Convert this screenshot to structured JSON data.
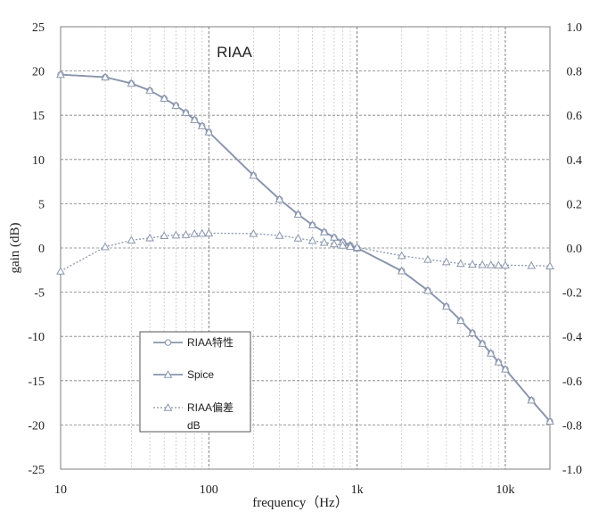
{
  "chart_data": {
    "type": "line",
    "title": "RIAA",
    "xlabel": "frequency（Hz）",
    "ylabel": "gain (dB)",
    "x_scale": "log",
    "xlim": [
      10,
      20000
    ],
    "ylim": [
      -25,
      25
    ],
    "y2lim": [
      -1.0,
      1.0
    ],
    "grid": true,
    "legend_position": "bottom-left",
    "x_ticks": [
      "10",
      "100",
      "1k",
      "10k"
    ],
    "y_ticks": [
      "25",
      "20",
      "15",
      "10",
      "5",
      "0",
      "-5",
      "-10",
      "-15",
      "-20",
      "-25"
    ],
    "y2_ticks": [
      "1.0",
      "0.8",
      "0.6",
      "0.4",
      "0.2",
      "0.0",
      "-0.2",
      "-0.4",
      "-0.6",
      "-0.8",
      "-1.0"
    ],
    "colors": {
      "series": "#8a96ad",
      "grid_major": "#7f7f7f",
      "grid_minor": "#c8c8c8"
    },
    "series": [
      {
        "name": "RIAA特性",
        "axis": "left",
        "style": "solid",
        "marker": "circle",
        "x": [
          10,
          20,
          30,
          40,
          50,
          60,
          70,
          80,
          90,
          100,
          200,
          300,
          400,
          500,
          600,
          700,
          800,
          900,
          1000,
          2000,
          3000,
          4000,
          5000,
          6000,
          7000,
          8000,
          9000,
          10000,
          15000,
          20000
        ],
        "values": [
          19.6,
          19.3,
          18.6,
          17.8,
          16.9,
          16.1,
          15.3,
          14.5,
          13.8,
          13.1,
          8.2,
          5.5,
          3.8,
          2.6,
          1.8,
          1.2,
          0.7,
          0.3,
          0.0,
          -2.6,
          -4.8,
          -6.6,
          -8.2,
          -9.6,
          -10.8,
          -11.9,
          -12.9,
          -13.7,
          -17.2,
          -19.6
        ]
      },
      {
        "name": "Spice",
        "axis": "left",
        "style": "solid",
        "marker": "triangle",
        "x": [
          10,
          20,
          30,
          40,
          50,
          60,
          70,
          80,
          90,
          100,
          200,
          300,
          400,
          500,
          600,
          700,
          800,
          900,
          1000,
          2000,
          3000,
          4000,
          5000,
          6000,
          7000,
          8000,
          9000,
          10000,
          15000,
          20000
        ],
        "values": [
          19.6,
          19.3,
          18.6,
          17.8,
          16.9,
          16.1,
          15.3,
          14.5,
          13.8,
          13.1,
          8.2,
          5.5,
          3.8,
          2.6,
          1.8,
          1.2,
          0.7,
          0.3,
          0.0,
          -2.6,
          -4.8,
          -6.6,
          -8.2,
          -9.6,
          -10.8,
          -11.9,
          -12.9,
          -13.7,
          -17.2,
          -19.6
        ]
      },
      {
        "name": "RIAA偏差",
        "name_line2": "dB",
        "axis": "right",
        "style": "dotted",
        "marker": "triangle",
        "x": [
          10,
          20,
          30,
          40,
          50,
          60,
          70,
          80,
          90,
          100,
          200,
          300,
          400,
          500,
          600,
          700,
          800,
          900,
          1000,
          2000,
          3000,
          4000,
          5000,
          6000,
          7000,
          8000,
          9000,
          10000,
          15000,
          20000
        ],
        "values": [
          -0.105,
          0.005,
          0.035,
          0.045,
          0.055,
          0.058,
          0.06,
          0.065,
          0.066,
          0.067,
          0.065,
          0.056,
          0.044,
          0.033,
          0.025,
          0.018,
          0.012,
          0.007,
          0.003,
          -0.035,
          -0.052,
          -0.063,
          -0.071,
          -0.074,
          -0.076,
          -0.077,
          -0.078,
          -0.078,
          -0.08,
          -0.082
        ]
      }
    ]
  }
}
